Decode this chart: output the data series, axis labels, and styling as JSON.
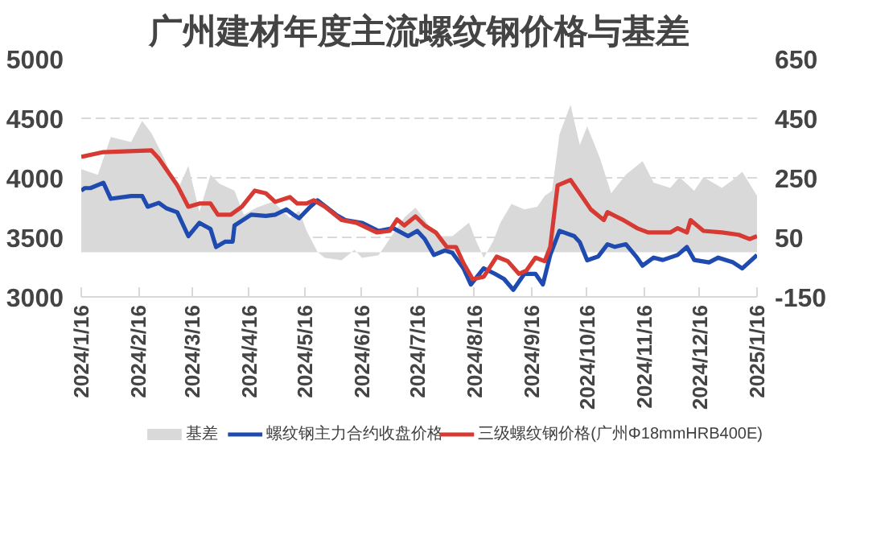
{
  "chart_data": {
    "type": "line",
    "title": "广州建材年度主流螺纹钢价格与基差",
    "xlim": [
      "2024-01-16",
      "2025-01-16"
    ],
    "xticks": [
      {
        "value": "2024-01-16",
        "label": "2024/1/16"
      },
      {
        "value": "2024-02-16",
        "label": "2024/2/16"
      },
      {
        "value": "2024-03-16",
        "label": "2024/3/16"
      },
      {
        "value": "2024-04-16",
        "label": "2024/4/16"
      },
      {
        "value": "2024-05-16",
        "label": "2024/5/16"
      },
      {
        "value": "2024-06-16",
        "label": "2024/6/16"
      },
      {
        "value": "2024-07-16",
        "label": "2024/7/16"
      },
      {
        "value": "2024-08-16",
        "label": "2024/8/16"
      },
      {
        "value": "2024-09-16",
        "label": "2024/9/16"
      },
      {
        "value": "2024-10-16",
        "label": "2024/10/16"
      },
      {
        "value": "2024-11-16",
        "label": "2024/11/16"
      },
      {
        "value": "2024-12-16",
        "label": "2024/12/16"
      },
      {
        "value": "2025-01-16",
        "label": "2025/1/16"
      }
    ],
    "ylim": [
      3000,
      5000
    ],
    "yticks": [
      3000,
      3500,
      4000,
      4500,
      5000
    ],
    "y2lim": [
      -150,
      650
    ],
    "y2ticks": [
      -150,
      50,
      250,
      450,
      650
    ],
    "grid": "y",
    "legend": "bottom",
    "line_style": "solid",
    "marker": "none",
    "series": [
      {
        "name": "基差",
        "type": "area",
        "axis": "y2",
        "color": "#d9d9d9",
        "x": [
          "2024-01-16",
          "2024-01-25",
          "2024-02-01",
          "2024-02-12",
          "2024-02-18",
          "2024-02-23",
          "2024-03-01",
          "2024-03-08",
          "2024-03-14",
          "2024-03-20",
          "2024-03-26",
          "2024-03-31",
          "2024-04-08",
          "2024-04-13",
          "2024-04-20",
          "2024-04-29",
          "2024-05-08",
          "2024-05-13",
          "2024-05-17",
          "2024-05-23",
          "2024-05-27",
          "2024-06-05",
          "2024-06-12",
          "2024-06-16",
          "2024-06-25",
          "2024-07-03",
          "2024-07-09",
          "2024-07-15",
          "2024-07-20",
          "2024-07-26",
          "2024-08-04",
          "2024-08-13",
          "2024-08-17",
          "2024-08-21",
          "2024-08-26",
          "2024-08-30",
          "2024-09-05",
          "2024-09-12",
          "2024-09-19",
          "2024-09-23",
          "2024-09-27",
          "2024-10-01",
          "2024-10-07",
          "2024-10-12",
          "2024-10-16",
          "2024-10-23",
          "2024-10-29",
          "2024-11-06",
          "2024-11-15",
          "2024-11-21",
          "2024-11-30",
          "2024-12-05",
          "2024-12-13",
          "2024-12-18",
          "2024-12-28",
          "2025-01-03",
          "2025-01-08",
          "2025-01-16"
        ],
        "values": [
          279,
          260,
          387,
          370,
          441,
          400,
          315,
          207,
          290,
          136,
          261,
          230,
          207,
          126,
          150,
          170,
          115,
          140,
          72,
          1,
          -19,
          -27,
          8,
          -19,
          -10,
          63,
          117,
          150,
          110,
          54,
          54,
          99,
          36,
          -19,
          36,
          99,
          162,
          144,
          153,
          189,
          207,
          396,
          495,
          360,
          423,
          315,
          198,
          261,
          306,
          234,
          216,
          252,
          207,
          252,
          216,
          243,
          270,
          189
        ]
      },
      {
        "name": "螺纹钢主力合约收盘价格",
        "color": "#1f4bb0",
        "x": [
          "2024-01-16",
          "2024-01-18",
          "2024-01-21",
          "2024-01-28",
          "2024-02-01",
          "2024-02-12",
          "2024-02-18",
          "2024-02-21",
          "2024-02-27",
          "2024-03-02",
          "2024-03-08",
          "2024-03-14",
          "2024-03-20",
          "2024-03-26",
          "2024-03-29",
          "2024-04-03",
          "2024-04-07",
          "2024-04-08",
          "2024-04-17",
          "2024-04-25",
          "2024-04-30",
          "2024-05-06",
          "2024-05-10",
          "2024-05-13",
          "2024-05-19",
          "2024-05-23",
          "2024-06-02",
          "2024-06-07",
          "2024-06-16",
          "2024-06-25",
          "2024-07-03",
          "2024-07-11",
          "2024-07-16",
          "2024-07-20",
          "2024-07-25",
          "2024-07-31",
          "2024-08-04",
          "2024-08-10",
          "2024-08-14",
          "2024-08-21",
          "2024-08-27",
          "2024-09-01",
          "2024-09-06",
          "2024-09-12",
          "2024-09-18",
          "2024-09-22",
          "2024-09-26",
          "2024-10-01",
          "2024-10-09",
          "2024-10-12",
          "2024-10-16",
          "2024-10-22",
          "2024-10-27",
          "2024-10-31",
          "2024-11-06",
          "2024-11-12",
          "2024-11-15",
          "2024-11-21",
          "2024-11-26",
          "2024-12-04",
          "2024-12-09",
          "2024-12-13",
          "2024-12-21",
          "2024-12-26",
          "2025-01-03",
          "2025-01-08",
          "2025-01-16"
        ],
        "values": [
          3892,
          3914,
          3914,
          3959,
          3824,
          3847,
          3847,
          3757,
          3790,
          3745,
          3710,
          3510,
          3622,
          3570,
          3419,
          3464,
          3464,
          3600,
          3690,
          3680,
          3690,
          3735,
          3690,
          3660,
          3757,
          3811,
          3690,
          3645,
          3622,
          3554,
          3577,
          3510,
          3554,
          3487,
          3352,
          3390,
          3370,
          3240,
          3104,
          3240,
          3194,
          3150,
          3059,
          3194,
          3194,
          3104,
          3352,
          3555,
          3510,
          3460,
          3307,
          3340,
          3442,
          3420,
          3442,
          3330,
          3262,
          3330,
          3310,
          3352,
          3419,
          3310,
          3290,
          3330,
          3290,
          3239,
          3352
        ]
      },
      {
        "name": "三级螺纹钢价格(广州Φ18mmHRB400E)",
        "color": "#d63a33",
        "x": [
          "2024-01-16",
          "2024-01-28",
          "2024-02-23",
          "2024-02-27",
          "2024-03-08",
          "2024-03-14",
          "2024-03-20",
          "2024-03-26",
          "2024-03-30",
          "2024-04-06",
          "2024-04-12",
          "2024-04-19",
          "2024-04-25",
          "2024-04-30",
          "2024-05-08",
          "2024-05-12",
          "2024-05-17",
          "2024-05-21",
          "2024-05-27",
          "2024-06-05",
          "2024-06-13",
          "2024-06-24",
          "2024-07-01",
          "2024-07-05",
          "2024-07-09",
          "2024-07-15",
          "2024-07-20",
          "2024-07-26",
          "2024-08-01",
          "2024-08-06",
          "2024-08-10",
          "2024-08-15",
          "2024-08-21",
          "2024-08-28",
          "2024-09-03",
          "2024-09-09",
          "2024-09-13",
          "2024-09-18",
          "2024-09-23",
          "2024-09-26",
          "2024-09-30",
          "2024-10-07",
          "2024-10-12",
          "2024-10-18",
          "2024-10-25",
          "2024-10-27",
          "2024-11-04",
          "2024-11-12",
          "2024-11-18",
          "2024-11-30",
          "2024-12-04",
          "2024-12-09",
          "2024-12-11",
          "2024-12-18",
          "2024-12-28",
          "2025-01-06",
          "2025-01-12",
          "2025-01-16"
        ],
        "values": [
          4176,
          4216,
          4230,
          4162,
          3937,
          3757,
          3784,
          3784,
          3690,
          3690,
          3757,
          3892,
          3870,
          3798,
          3838,
          3784,
          3784,
          3811,
          3757,
          3645,
          3622,
          3541,
          3554,
          3650,
          3600,
          3676,
          3600,
          3541,
          3419,
          3419,
          3284,
          3149,
          3170,
          3338,
          3300,
          3194,
          3220,
          3329,
          3300,
          3419,
          3937,
          3982,
          3870,
          3734,
          3645,
          3712,
          3650,
          3577,
          3541,
          3541,
          3577,
          3541,
          3645,
          3554,
          3541,
          3522,
          3486,
          3510
        ]
      }
    ]
  }
}
